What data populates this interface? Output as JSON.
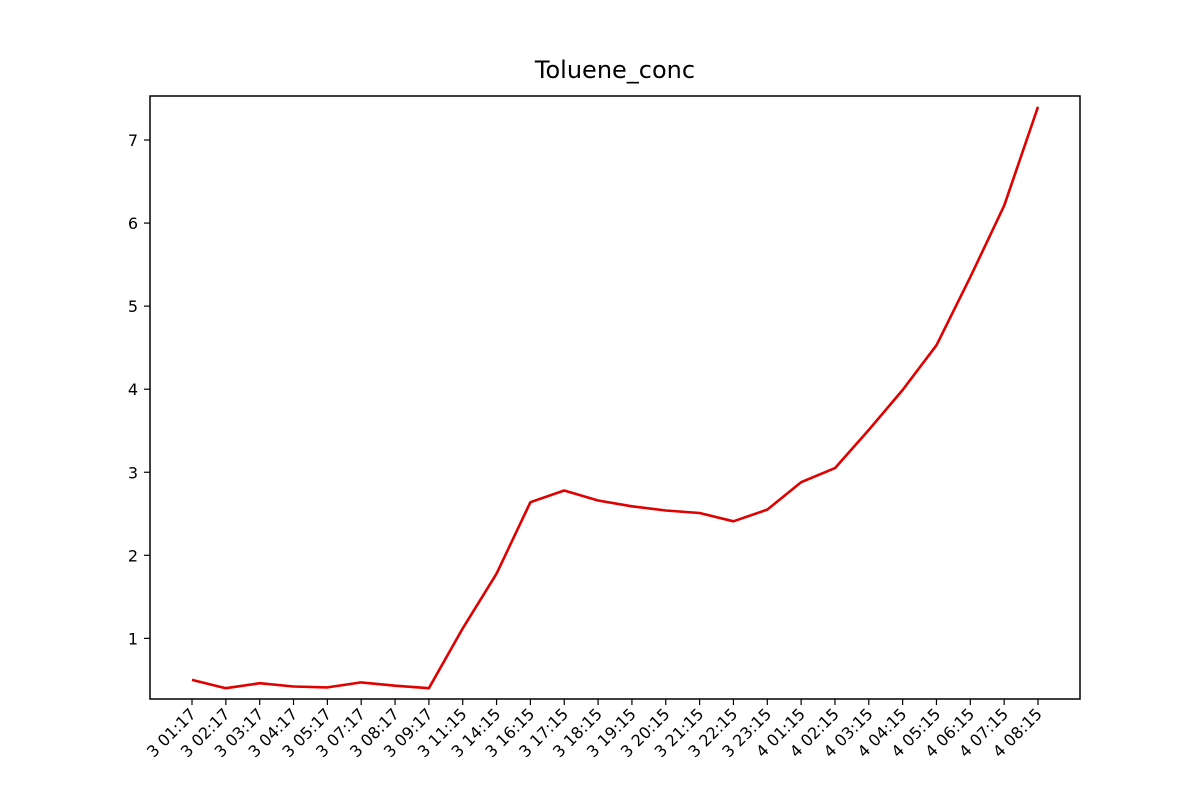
{
  "chart_data": {
    "type": "line",
    "title": "Toluene_conc",
    "xlabel": "",
    "ylabel": "",
    "grid": false,
    "legend": "none",
    "x": [
      "2023-07-03 01:17",
      "2023-07-03 02:17",
      "2023-07-03 03:17",
      "2023-07-03 04:17",
      "2023-07-03 05:17",
      "2023-07-03 07:17",
      "2023-07-03 08:17",
      "2023-07-03 09:17",
      "2023-07-03 11:15",
      "2023-07-03 14:15",
      "2023-07-03 16:15",
      "2023-07-03 17:15",
      "2023-07-03 18:15",
      "2023-07-03 19:15",
      "2023-07-03 20:15",
      "2023-07-03 21:15",
      "2023-07-03 22:15",
      "2023-07-03 23:15",
      "2023-07-04 01:15",
      "2023-07-04 02:15",
      "2023-07-04 03:15",
      "2023-07-04 04:15",
      "2023-07-04 05:15",
      "2023-07-04 06:15",
      "2023-07-04 07:15",
      "2023-07-04 08:15"
    ],
    "x_tick_labels": [
      "3 01:17",
      "3 02:17",
      "3 03:17",
      "3 04:17",
      "3 05:17",
      "3 07:17",
      "3 08:17",
      "3 09:17",
      "3 11:15",
      "3 14:15",
      "3 16:15",
      "3 17:15",
      "3 18:15",
      "3 19:15",
      "3 20:15",
      "3 21:15",
      "3 22:15",
      "3 23:15",
      "4 01:15",
      "4 02:15",
      "4 03:15",
      "4 04:15",
      "4 05:15",
      "4 06:15",
      "4 07:15",
      "4 08:15"
    ],
    "series": [
      {
        "color": "#e00000",
        "values": [
          0.5,
          0.4,
          0.46,
          0.42,
          0.41,
          0.47,
          0.43,
          0.4,
          1.12,
          1.78,
          2.64,
          2.78,
          2.66,
          2.59,
          2.54,
          2.51,
          2.41,
          2.55,
          2.88,
          3.05,
          3.51,
          3.99,
          4.53,
          5.35,
          6.21,
          7.4
        ]
      }
    ],
    "yticks": [
      1,
      2,
      3,
      4,
      5,
      6,
      7
    ],
    "ylim": [
      0.27,
      7.53
    ]
  }
}
